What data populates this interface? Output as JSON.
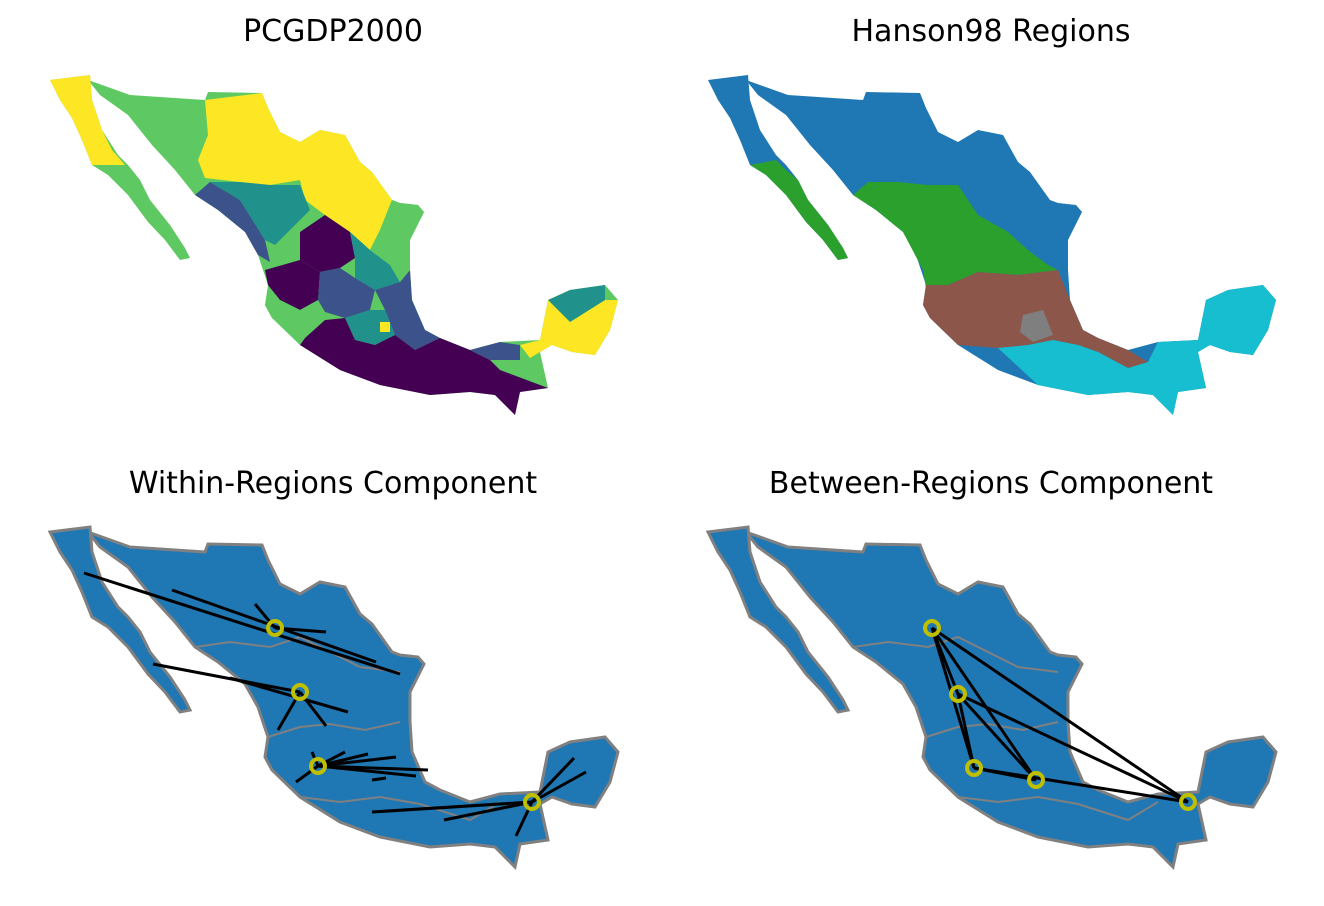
{
  "panels": {
    "top_left": {
      "title": "PCGDP2000",
      "colors": {
        "low": "#440154",
        "mid_low": "#3b528b",
        "mid": "#21918c",
        "mid_high": "#5ec962",
        "high": "#fde725"
      }
    },
    "top_right": {
      "title": "Hanson98 Regions",
      "colors": {
        "north": "#1f77b4",
        "north_central": "#2ca02c",
        "west_pacific": "#2ca02c",
        "central": "#8c564b",
        "capital": "#7f7f7f",
        "south": "#17becf"
      }
    },
    "bottom_left": {
      "title": "Within-Regions Component",
      "colors": {
        "fill": "#1f77b4",
        "border": "#808080",
        "edge": "#000000",
        "node": "#bfbf00"
      }
    },
    "bottom_right": {
      "title": "Between-Regions Component",
      "colors": {
        "fill": "#1f77b4",
        "border": "#808080",
        "edge": "#000000",
        "node": "#bfbf00"
      }
    }
  }
}
